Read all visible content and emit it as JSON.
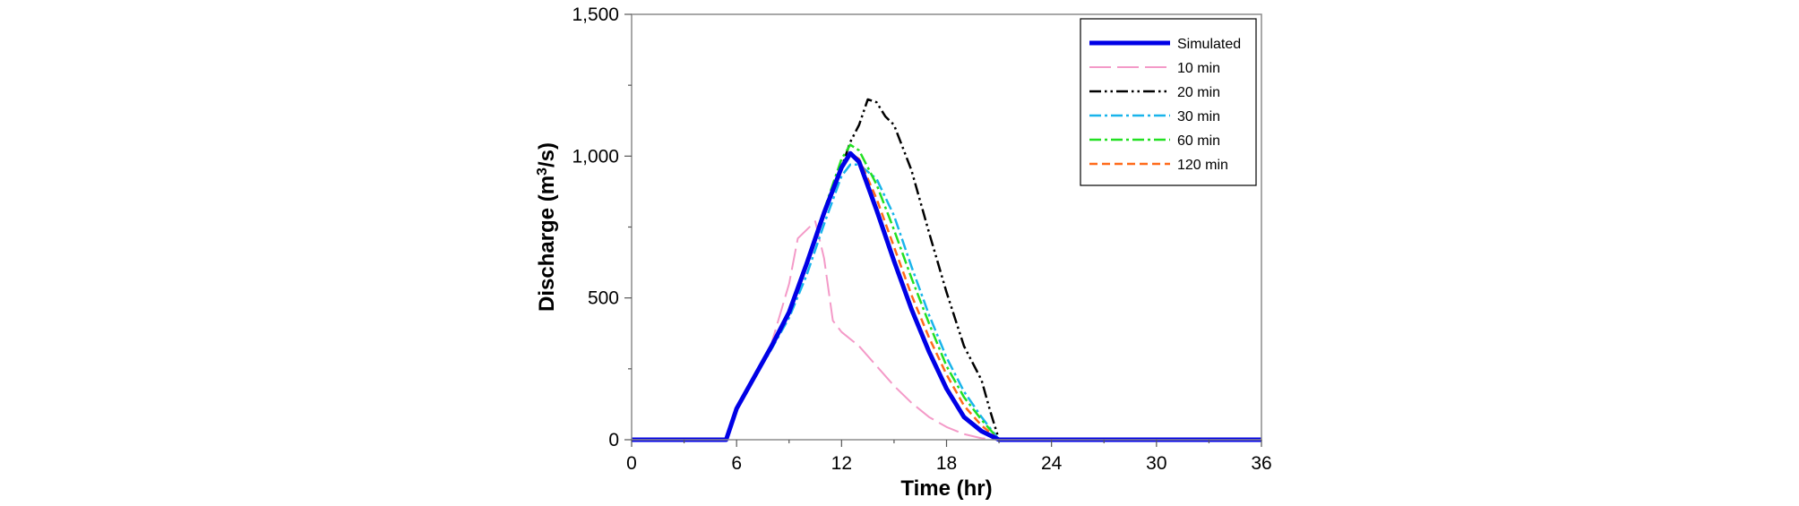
{
  "chart_data": {
    "type": "line",
    "title": "",
    "xlabel": "Time (hr)",
    "ylabel": "Discharge (m³/s)",
    "ylabel_parts": [
      "Discharge (m",
      "3",
      "/s)"
    ],
    "xlim": [
      0,
      36
    ],
    "ylim": [
      0,
      1500
    ],
    "x_ticks": [
      0,
      6,
      12,
      18,
      24,
      30,
      36
    ],
    "x_tick_labels": [
      "0",
      "6",
      "12",
      "18",
      "24",
      "30",
      "36"
    ],
    "x_minor_ticks": [
      3,
      9,
      15,
      21,
      27,
      33
    ],
    "y_ticks": [
      0,
      500,
      1000,
      1500
    ],
    "y_tick_labels": [
      "0",
      "500",
      "1,000",
      "1,500"
    ],
    "y_minor_ticks": [
      250,
      750,
      1250
    ],
    "grid": false,
    "legend_position": "top-right",
    "series": [
      {
        "name": "Simulated",
        "color": "#0000e6",
        "dash": "solid",
        "width": 5,
        "x": [
          0,
          5.4,
          6,
          8,
          9,
          10,
          11,
          12,
          12.5,
          13,
          14,
          15,
          16,
          17,
          18,
          19,
          20,
          21,
          36
        ],
        "y": [
          0,
          0,
          110,
          330,
          450,
          620,
          800,
          960,
          1010,
          980,
          810,
          630,
          460,
          310,
          180,
          80,
          30,
          0,
          0
        ]
      },
      {
        "name": "10 min",
        "color": "#f49ac8",
        "dash": "long-dash",
        "width": 2,
        "x": [
          0,
          5.4,
          6,
          7,
          8,
          9,
          9.5,
          10,
          10.5,
          11,
          11.5,
          12,
          13,
          14,
          15,
          16,
          17,
          18,
          19,
          20,
          20.5,
          21,
          36
        ],
        "y": [
          0,
          0,
          110,
          220,
          340,
          550,
          710,
          740,
          770,
          640,
          420,
          380,
          330,
          260,
          190,
          130,
          80,
          45,
          20,
          5,
          3,
          0,
          0
        ]
      },
      {
        "name": "20 min",
        "color": "#000000",
        "dash": "dash-dot-dot",
        "width": 2.5,
        "x": [
          0,
          5.4,
          6,
          8,
          9,
          10,
          11,
          12,
          12.5,
          13,
          13.5,
          14,
          14.5,
          15,
          16,
          17,
          18,
          19,
          20,
          20.5,
          21,
          36
        ],
        "y": [
          0,
          0,
          110,
          330,
          450,
          610,
          790,
          960,
          1050,
          1110,
          1200,
          1190,
          1140,
          1110,
          950,
          730,
          520,
          330,
          210,
          100,
          0,
          0
        ]
      },
      {
        "name": "30 min",
        "color": "#19b4eb",
        "dash": "dash-dot",
        "width": 2.5,
        "x": [
          0,
          5.4,
          6,
          8,
          9,
          10,
          11,
          12,
          12.5,
          13,
          14,
          15,
          16,
          17,
          18,
          19,
          20,
          21,
          36
        ],
        "y": [
          0,
          0,
          110,
          320,
          430,
          580,
          760,
          930,
          970,
          970,
          920,
          790,
          610,
          440,
          290,
          170,
          80,
          0,
          0
        ]
      },
      {
        "name": "60 min",
        "color": "#22e022",
        "dash": "dash-dot",
        "width": 2.5,
        "x": [
          0,
          5.4,
          6,
          8,
          9,
          10,
          11,
          12,
          12.5,
          13,
          14,
          15,
          16,
          17,
          18,
          19,
          20,
          21,
          36
        ],
        "y": [
          0,
          0,
          110,
          330,
          450,
          620,
          810,
          990,
          1040,
          1020,
          900,
          740,
          570,
          410,
          260,
          150,
          70,
          0,
          0
        ]
      },
      {
        "name": "120 min",
        "color": "#ff6a1a",
        "dash": "dash",
        "width": 2.5,
        "x": [
          0,
          5.4,
          6,
          8,
          9,
          10,
          11,
          12,
          12.5,
          13,
          14,
          15,
          16,
          17,
          18,
          19,
          20,
          21,
          36
        ],
        "y": [
          0,
          0,
          110,
          330,
          450,
          620,
          800,
          960,
          1010,
          990,
          850,
          680,
          510,
          360,
          230,
          120,
          50,
          0,
          0
        ]
      }
    ]
  }
}
